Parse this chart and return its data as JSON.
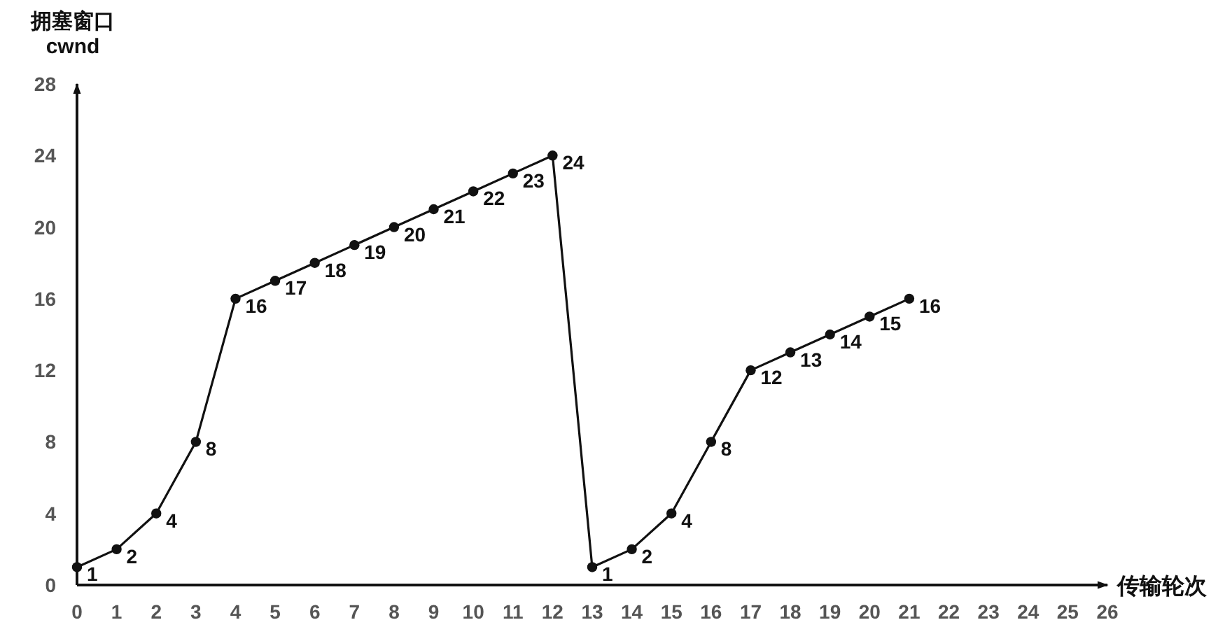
{
  "chart_data": {
    "type": "line",
    "xlabel": "传输轮次",
    "ylabel": "拥塞窗口\ncwnd",
    "x": [
      0,
      1,
      2,
      3,
      4,
      5,
      6,
      7,
      8,
      9,
      10,
      11,
      12,
      13,
      14,
      15,
      16,
      17,
      18,
      19,
      20,
      21
    ],
    "series": [
      {
        "color": "#111111",
        "values": [
          1,
          2,
          4,
          8,
          16,
          17,
          18,
          19,
          20,
          21,
          22,
          23,
          24,
          1,
          2,
          4,
          8,
          12,
          13,
          14,
          15,
          16
        ]
      }
    ],
    "xlim": [
      0,
      26
    ],
    "ylim": [
      0,
      28
    ],
    "xticks": [
      0,
      1,
      2,
      3,
      4,
      5,
      6,
      7,
      8,
      9,
      10,
      11,
      12,
      13,
      14,
      15,
      16,
      17,
      18,
      19,
      20,
      21,
      22,
      23,
      24,
      25,
      26
    ],
    "yticks": [
      0,
      4,
      8,
      12,
      16,
      20,
      24,
      28
    ],
    "marker": "circle",
    "line_style": "solid",
    "data_labels": true
  }
}
